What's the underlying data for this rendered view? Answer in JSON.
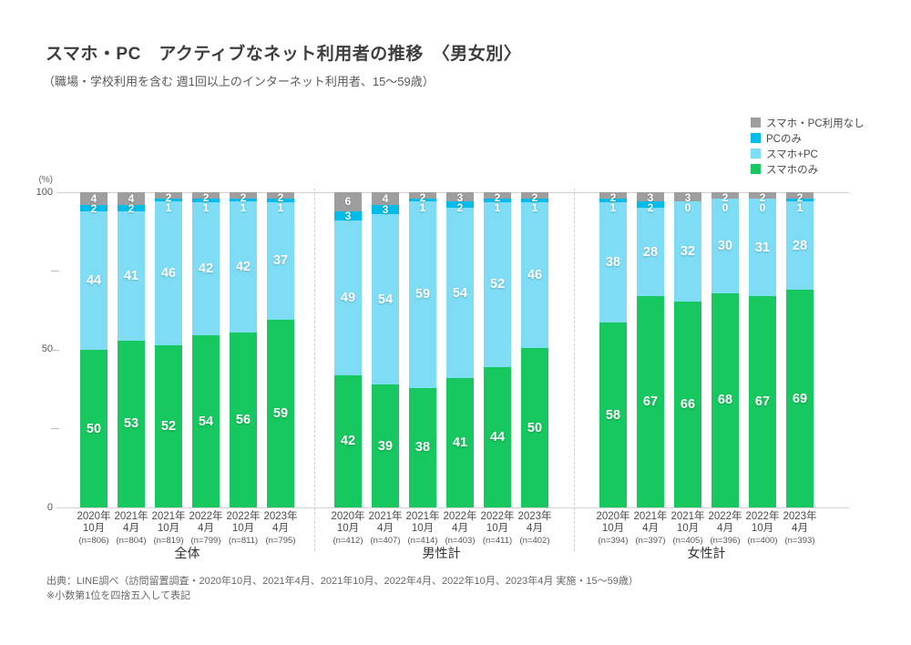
{
  "title": "スマホ・PC　アクティブなネット利用者の推移　〈男女別〉",
  "subtitle": "（職場・学校利用を含む 週1回以上のインターネット利用者、15～59歳）",
  "legend": [
    {
      "key": "no-usage",
      "label": "スマホ・PC利用なし",
      "color": "#9e9ea0"
    },
    {
      "key": "pc-only",
      "label": "PCのみ",
      "color": "#00bce8"
    },
    {
      "key": "smartphone-plus-pc",
      "label": "スマホ+PC",
      "color": "#7eddf4"
    },
    {
      "key": "smartphone-only",
      "label": "スマホのみ",
      "color": "#17c75f"
    }
  ],
  "axis": {
    "unit": "(%)",
    "tick_100": "100",
    "tick_50": "50",
    "tick_0": "0"
  },
  "chart_data": {
    "type": "bar",
    "stacked": true,
    "ylim": [
      0,
      100
    ],
    "yticks_labeled": [
      0,
      50,
      100
    ],
    "yticks_minor": [
      25,
      50,
      75
    ],
    "grid": "top-and-baseline-only",
    "legend_position": "top-right",
    "series_bottom_to_top": [
      {
        "key": "smartphone-only",
        "name": "スマホのみ",
        "color": "#17c75f",
        "label_size": "big"
      },
      {
        "key": "smartphone-plus-pc",
        "name": "スマホ+PC",
        "color": "#7eddf4",
        "label_size": "big"
      },
      {
        "key": "pc-only",
        "name": "PCのみ",
        "color": "#00bce8",
        "label_size": "small"
      },
      {
        "key": "no-usage",
        "name": "スマホ・PC利用なし",
        "color": "#9e9ea0",
        "label_size": "small"
      }
    ],
    "groups": [
      {
        "label": "全体",
        "bars": [
          {
            "year": "2020年",
            "month": "10月",
            "n": "(n=806)",
            "values": [
              50,
              44,
              2,
              4
            ]
          },
          {
            "year": "2021年",
            "month": "4月",
            "n": "(n=804)",
            "values": [
              53,
              41,
              2,
              4
            ]
          },
          {
            "year": "2021年",
            "month": "10月",
            "n": "(n=819)",
            "values": [
              52,
              46,
              1,
              2
            ]
          },
          {
            "year": "2022年",
            "month": "4月",
            "n": "(n=799)",
            "values": [
              54,
              42,
              1,
              2
            ]
          },
          {
            "year": "2022年",
            "month": "10月",
            "n": "(n=811)",
            "values": [
              56,
              42,
              1,
              2
            ]
          },
          {
            "year": "2023年",
            "month": "4月",
            "n": "(n=795)",
            "values": [
              59,
              37,
              1,
              2
            ]
          }
        ]
      },
      {
        "label": "男性計",
        "bars": [
          {
            "year": "2020年",
            "month": "10月",
            "n": "(n=412)",
            "values": [
              42,
              49,
              3,
              6
            ]
          },
          {
            "year": "2021年",
            "month": "4月",
            "n": "(n=407)",
            "values": [
              39,
              54,
              3,
              4
            ]
          },
          {
            "year": "2021年",
            "month": "10月",
            "n": "(n=414)",
            "values": [
              38,
              59,
              1,
              2
            ]
          },
          {
            "year": "2022年",
            "month": "4月",
            "n": "(n=403)",
            "values": [
              41,
              54,
              2,
              3
            ]
          },
          {
            "year": "2022年",
            "month": "10月",
            "n": "(n=411)",
            "values": [
              44,
              52,
              1,
              2
            ]
          },
          {
            "year": "2023年",
            "month": "4月",
            "n": "(n=402)",
            "values": [
              50,
              46,
              1,
              2
            ]
          }
        ]
      },
      {
        "label": "女性計",
        "bars": [
          {
            "year": "2020年",
            "month": "10月",
            "n": "(n=394)",
            "values": [
              58,
              38,
              1,
              2
            ]
          },
          {
            "year": "2021年",
            "month": "4月",
            "n": "(n=397)",
            "values": [
              67,
              28,
              2,
              3
            ]
          },
          {
            "year": "2021年",
            "month": "10月",
            "n": "(n=405)",
            "values": [
              66,
              32,
              0,
              3
            ]
          },
          {
            "year": "2022年",
            "month": "4月",
            "n": "(n=396)",
            "values": [
              68,
              30,
              0,
              2
            ]
          },
          {
            "year": "2022年",
            "month": "10月",
            "n": "(n=400)",
            "values": [
              67,
              31,
              0,
              2
            ]
          },
          {
            "year": "2023年",
            "month": "4月",
            "n": "(n=393)",
            "values": [
              69,
              28,
              1,
              2
            ]
          }
        ]
      }
    ]
  },
  "footer": {
    "source": "出典：LINE調べ（訪問留置調査・2020年10月、2021年4月、2021年10月、2022年4月、2022年10月、2023年4月 実施・15～59歳）",
    "note": "※小数第1位を四捨五入して表記"
  }
}
